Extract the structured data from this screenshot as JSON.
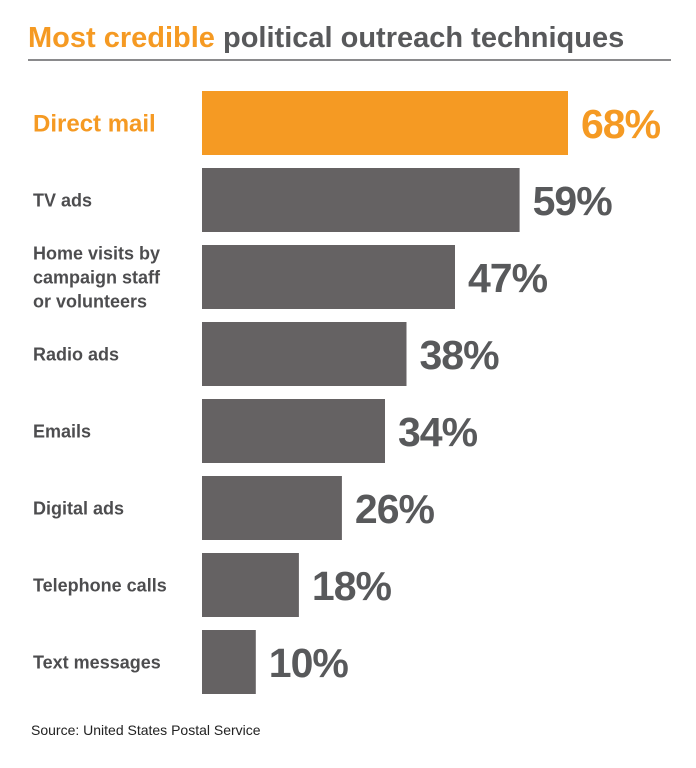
{
  "title": {
    "highlight": "Most credible",
    "rest": "political outreach techniques"
  },
  "source": "Source: United States Postal Service",
  "colors": {
    "highlight": "#f59a23",
    "bar": "#656263",
    "value_text": "#58595b",
    "label_text": "#4d4d4f"
  },
  "chart_data": {
    "type": "bar",
    "orientation": "horizontal",
    "title": "Most credible political outreach techniques",
    "categories": [
      "Direct mail",
      "TV ads",
      "Home visits by campaign staff or volunteers",
      "Radio ads",
      "Emails",
      "Digital ads",
      "Telephone calls",
      "Text messages"
    ],
    "label_lines": [
      [
        "Direct mail"
      ],
      [
        "TV ads"
      ],
      [
        "Home visits by",
        "campaign staff",
        "or volunteers"
      ],
      [
        "Radio ads"
      ],
      [
        "Emails"
      ],
      [
        "Digital ads"
      ],
      [
        "Telephone calls"
      ],
      [
        "Text messages"
      ]
    ],
    "values": [
      68,
      59,
      47,
      38,
      34,
      26,
      18,
      10
    ],
    "value_labels": [
      "68%",
      "59%",
      "47%",
      "38%",
      "34%",
      "26%",
      "18%",
      "10%"
    ],
    "highlight_index": 0,
    "unit": "%",
    "xlim": [
      0,
      68
    ],
    "grid": false,
    "legend": "none"
  }
}
